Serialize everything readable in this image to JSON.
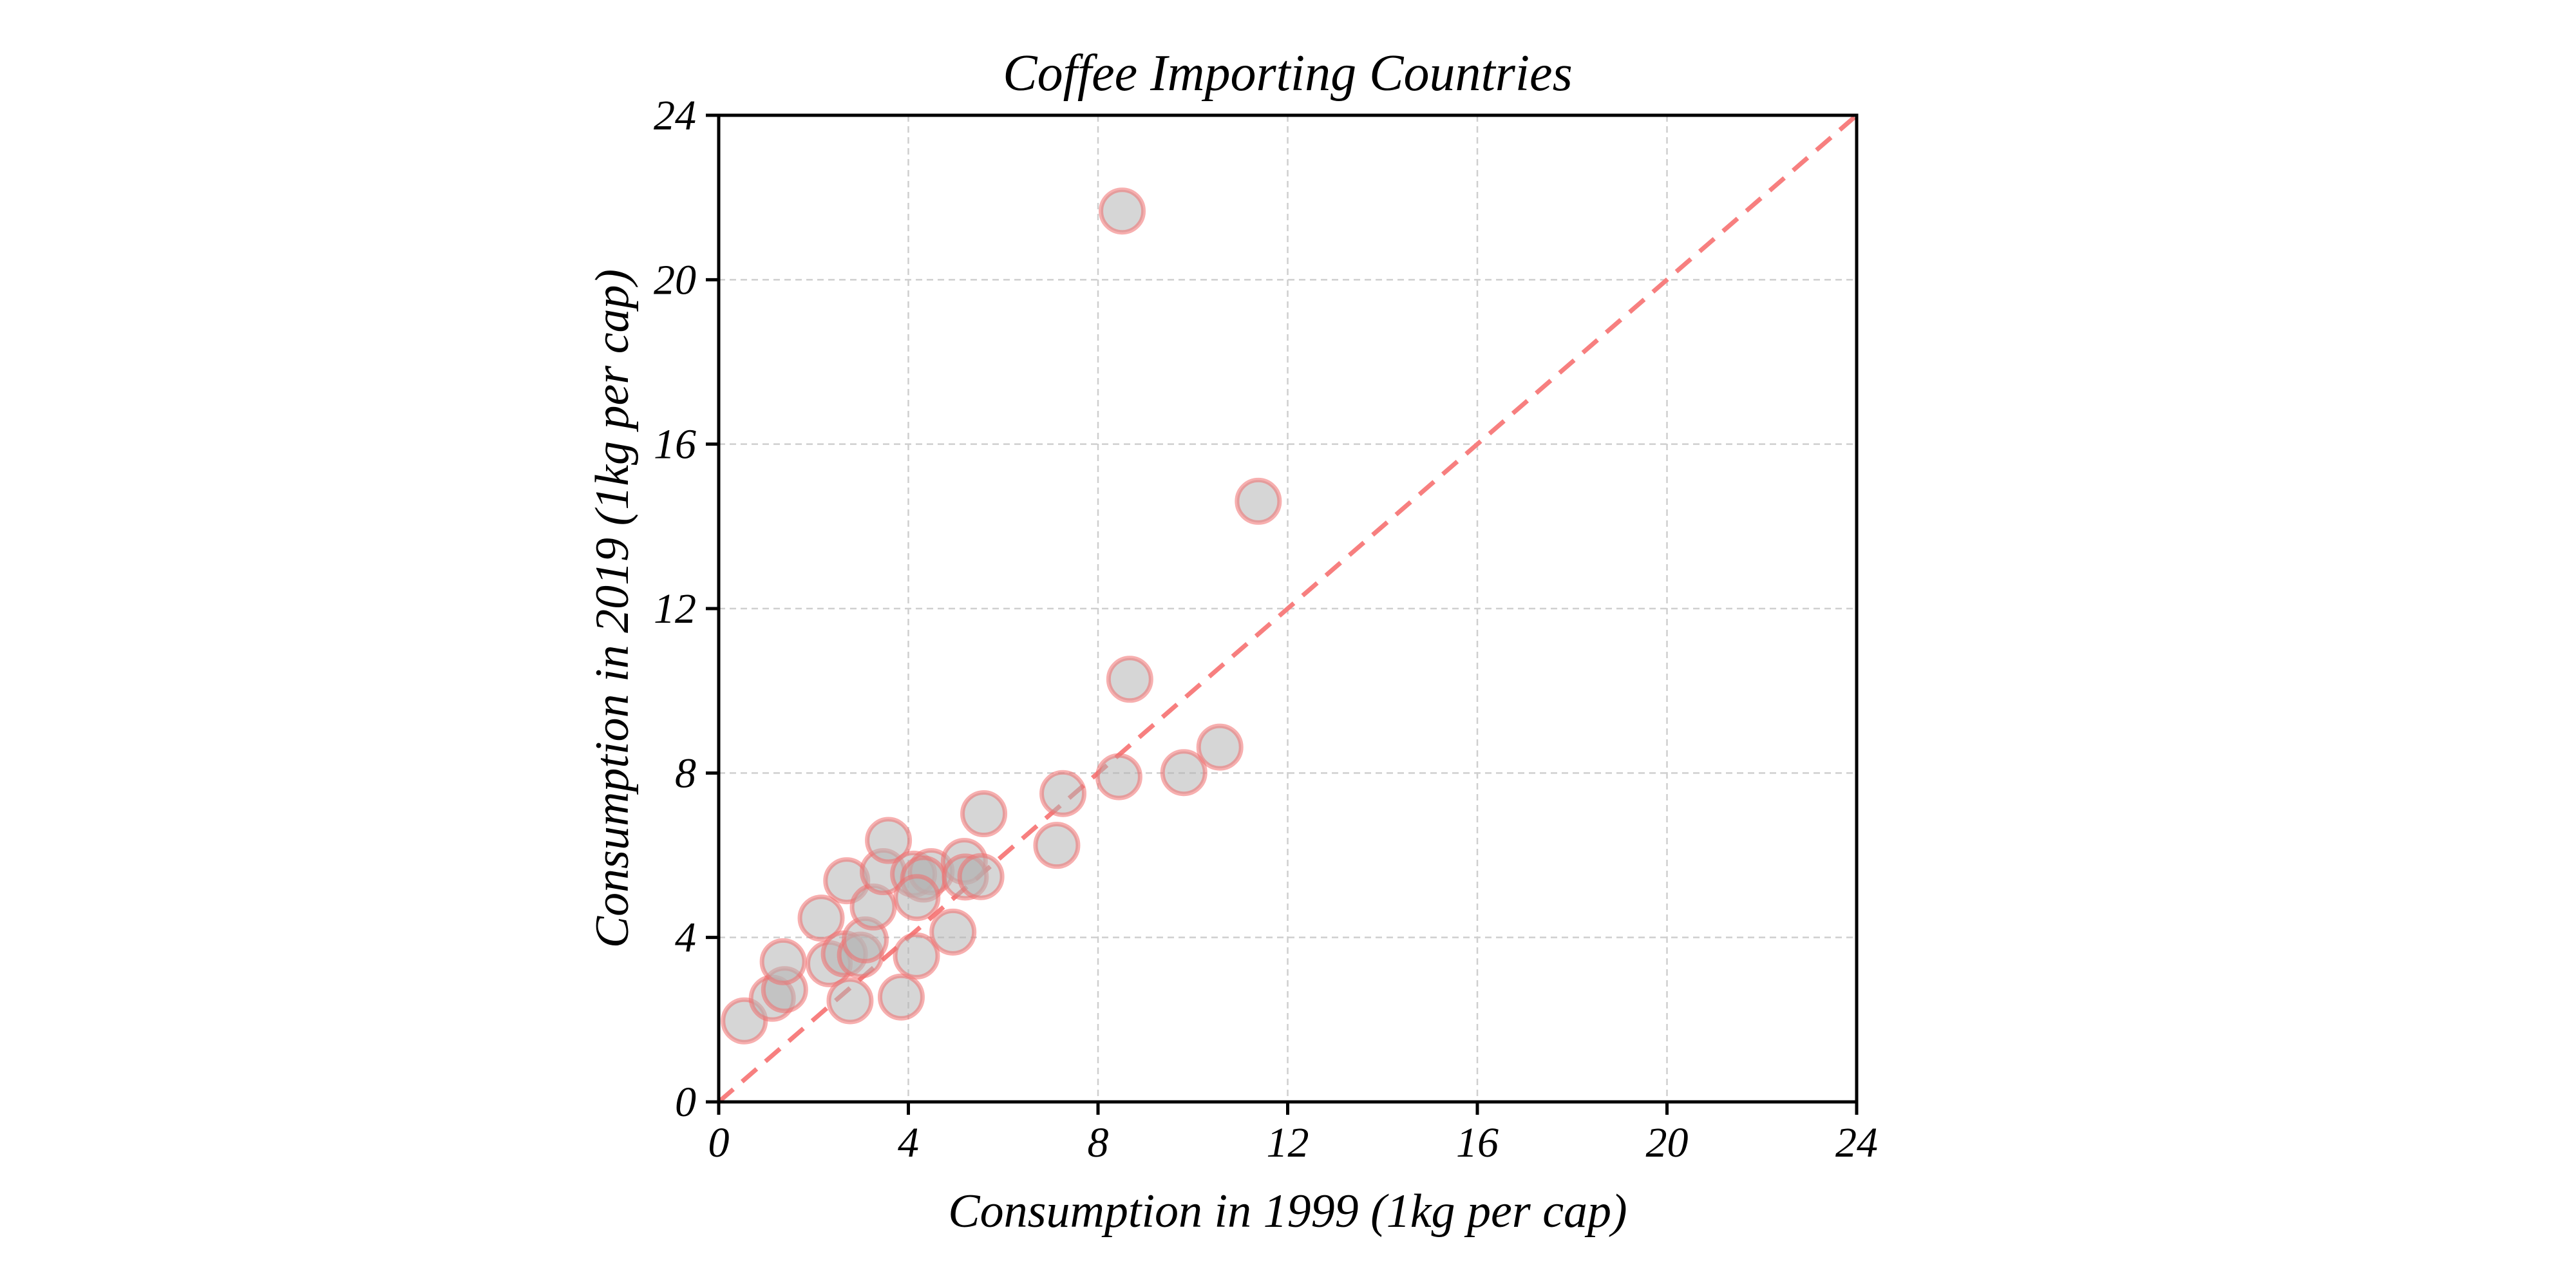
{
  "chart_data": {
    "type": "scatter",
    "title": "Coffee Importing Countries",
    "xlabel": "Consumption in 1999 (1kg per cap)",
    "ylabel": "Consumption in 2019 (1kg per cap)",
    "xlim": [
      0,
      24
    ],
    "ylim": [
      0,
      24
    ],
    "xticks": [
      0,
      4,
      8,
      12,
      16,
      20,
      24
    ],
    "yticks": [
      0,
      4,
      8,
      12,
      16,
      20,
      24
    ],
    "xtick_labels": [
      "0",
      "4",
      "8",
      "12",
      "16",
      "20",
      "24"
    ],
    "ytick_labels": [
      "0",
      "4",
      "8",
      "12",
      "16",
      "20",
      "24"
    ],
    "grid": true,
    "legend": "none",
    "reference_line": {
      "type": "y=x",
      "style": "dashed",
      "color": "#f77f7f"
    },
    "marker": {
      "fill": "#d8d8d8",
      "edge": "#f08080",
      "shape": "circle"
    },
    "points": [
      {
        "x": 0.54,
        "y": 1.97
      },
      {
        "x": 1.13,
        "y": 2.52
      },
      {
        "x": 1.39,
        "y": 2.73
      },
      {
        "x": 1.36,
        "y": 3.41
      },
      {
        "x": 2.16,
        "y": 4.47
      },
      {
        "x": 2.33,
        "y": 3.36
      },
      {
        "x": 2.65,
        "y": 3.6
      },
      {
        "x": 2.99,
        "y": 3.57
      },
      {
        "x": 3.09,
        "y": 3.94
      },
      {
        "x": 2.77,
        "y": 2.46
      },
      {
        "x": 2.7,
        "y": 5.38
      },
      {
        "x": 3.26,
        "y": 4.74
      },
      {
        "x": 3.47,
        "y": 5.6
      },
      {
        "x": 3.58,
        "y": 6.36
      },
      {
        "x": 3.85,
        "y": 2.55
      },
      {
        "x": 4.11,
        "y": 5.54
      },
      {
        "x": 4.48,
        "y": 5.6
      },
      {
        "x": 4.32,
        "y": 5.42
      },
      {
        "x": 4.18,
        "y": 4.97
      },
      {
        "x": 4.17,
        "y": 3.55
      },
      {
        "x": 4.94,
        "y": 4.13
      },
      {
        "x": 5.18,
        "y": 5.85
      },
      {
        "x": 5.2,
        "y": 5.47
      },
      {
        "x": 5.53,
        "y": 5.48
      },
      {
        "x": 5.59,
        "y": 7.01
      },
      {
        "x": 7.13,
        "y": 6.24
      },
      {
        "x": 7.26,
        "y": 7.5
      },
      {
        "x": 8.44,
        "y": 7.91
      },
      {
        "x": 9.81,
        "y": 8.01
      },
      {
        "x": 10.57,
        "y": 8.63
      },
      {
        "x": 8.67,
        "y": 10.28
      },
      {
        "x": 11.38,
        "y": 14.61
      },
      {
        "x": 8.51,
        "y": 21.67
      }
    ]
  }
}
